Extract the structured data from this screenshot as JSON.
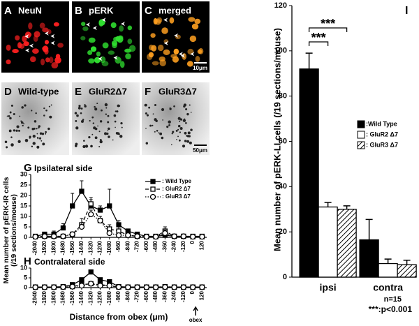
{
  "image_panels": [
    {
      "label": "A",
      "caption": "NeuN"
    },
    {
      "label": "B",
      "caption": "pERK"
    },
    {
      "label": "C",
      "caption": "merged",
      "scale": "10μm"
    },
    {
      "label": "D",
      "caption": "Wild-type"
    },
    {
      "label": "E",
      "caption": "GluR2Δ7"
    },
    {
      "label": "F",
      "caption": "GluR3Δ7",
      "scale": "50μm"
    }
  ],
  "chart_data": [
    {
      "type": "line",
      "panel_label": "G",
      "title": "Ipsilateral side",
      "ylabel": [
        "Mean number of pERK-IR cells",
        "(/19 sections/mouse)"
      ],
      "x": [
        -2040,
        -1920,
        -1800,
        -1680,
        -1560,
        -1440,
        -1320,
        -1200,
        -1080,
        -960,
        -840,
        -720,
        -600,
        -480,
        -360,
        -240,
        -120,
        0,
        120
      ],
      "xlim": [
        -2100,
        180
      ],
      "xticks": [
        -2040,
        -1920,
        -1800,
        -1680,
        -1560,
        -1440,
        -1320,
        -1200,
        -1080,
        -960,
        -840,
        -720,
        -600,
        -480,
        -360,
        -240,
        -120,
        0,
        120
      ],
      "ylim": [
        0,
        30
      ],
      "yticks": [
        0,
        5,
        10,
        15,
        20,
        25,
        30
      ],
      "series": [
        {
          "name": ": Wild Type",
          "color": "#000000",
          "marker": "filled-square",
          "line_style": "solid",
          "values": [
            0.5,
            1.5,
            1.5,
            4.5,
            15,
            22,
            15,
            13,
            15,
            6,
            3,
            1.5,
            0.5,
            0.5,
            1,
            0.5,
            0.5,
            0.5,
            0.5
          ],
          "errors": [
            0.5,
            1,
            1.5,
            2,
            6,
            5,
            3,
            2,
            8,
            2,
            1,
            0.5,
            0.3,
            0.3,
            0.8,
            0.3,
            0.3,
            0.3,
            0.3
          ]
        },
        {
          "name": ": GluR2 Δ7",
          "color": "#000000",
          "marker": "open-square",
          "line_style": "dashed",
          "values": [
            0.3,
            0.5,
            0.5,
            0.5,
            1.5,
            6,
            16,
            8,
            4,
            3,
            1,
            0.5,
            0.3,
            0.3,
            3,
            0.5,
            0.5,
            0.3,
            0.3
          ],
          "errors": [
            0.3,
            0.5,
            0.5,
            0.5,
            1,
            3,
            3,
            2,
            2,
            2,
            1,
            0.5,
            0.3,
            0.3,
            2,
            0.3,
            0.3,
            0.3,
            0.3
          ]
        },
        {
          "name": ": GluR3 Δ7",
          "color": "#000000",
          "marker": "open-circle",
          "line_style": "dotted",
          "values": [
            0.3,
            0.5,
            0.5,
            0.5,
            1.5,
            5,
            11,
            8,
            2,
            1,
            1,
            0.5,
            0.3,
            0.3,
            2,
            0.5,
            0.5,
            0.3,
            0.3
          ],
          "errors": [
            0.3,
            0.3,
            0.3,
            0.5,
            1,
            2,
            2,
            2,
            1,
            1,
            0.5,
            0.3,
            0.3,
            0.3,
            1.5,
            0.3,
            0.3,
            0.3,
            0.3
          ]
        }
      ]
    },
    {
      "type": "line",
      "panel_label": "H",
      "title": "Contralateral side",
      "xlabel": "Distance from obex (μm)",
      "annotation": "obex",
      "x": [
        -2040,
        -1920,
        -1800,
        -1680,
        -1560,
        -1440,
        -1320,
        -1200,
        -1080,
        -960,
        -840,
        -720,
        -600,
        -480,
        -360,
        -240,
        -120,
        0,
        120
      ],
      "xlim": [
        -2100,
        180
      ],
      "xticks": [
        -2040,
        -1920,
        -1800,
        -1680,
        -1560,
        -1440,
        -1320,
        -1200,
        -1080,
        -960,
        -840,
        -720,
        -600,
        -480,
        -360,
        -240,
        -120,
        0,
        120
      ],
      "ylim": [
        0,
        10
      ],
      "yticks": [
        0,
        5,
        10
      ],
      "series": [
        {
          "color": "#000000",
          "marker": "filled-square",
          "line_style": "solid",
          "values": [
            0.3,
            0.3,
            0.3,
            0.5,
            1.5,
            4,
            8,
            4,
            3,
            0.5,
            0.3,
            0.3,
            0.3,
            0.3,
            0.3,
            0.3,
            0.3,
            0.3,
            0.3
          ]
        },
        {
          "color": "#000000",
          "marker": "open-square",
          "line_style": "dashed",
          "values": [
            0.2,
            0.2,
            0.2,
            0.3,
            0.5,
            1.5,
            2,
            1.5,
            1,
            0.3,
            0.2,
            0.2,
            0.2,
            0.2,
            0.5,
            0.2,
            0.2,
            0.2,
            0.2
          ]
        },
        {
          "color": "#000000",
          "marker": "open-circle",
          "line_style": "dotted",
          "values": [
            0.2,
            0.2,
            0.2,
            0.3,
            0.5,
            1,
            2,
            1,
            1,
            0.3,
            0.2,
            0.2,
            0.2,
            0.2,
            0.3,
            0.2,
            0.2,
            0.2,
            0.2
          ]
        }
      ]
    },
    {
      "type": "bar",
      "panel_label": "I",
      "ylabel": "Mean number of pERK-LI cells  (/19 sections/mouse)",
      "categories": [
        "ipsi",
        "contra"
      ],
      "ylim": [
        0,
        120
      ],
      "yticks": [
        0,
        20,
        40,
        60,
        80,
        100,
        120
      ],
      "series": [
        {
          "name": ":Wild Type",
          "color": "#000000",
          "fill": "solid",
          "values": [
            92,
            16.5
          ],
          "errors": [
            7,
            9
          ]
        },
        {
          "name": ": GluR2 Δ7",
          "color": "#ffffff",
          "fill": "solid",
          "values": [
            31,
            6
          ],
          "errors": [
            2,
            2
          ]
        },
        {
          "name": ": GluR3 Δ7",
          "color": "#ffffff",
          "fill": "hatch",
          "values": [
            30,
            5.5
          ],
          "errors": [
            1.5,
            2
          ]
        }
      ],
      "annotations": [
        "***",
        "***",
        "n=15",
        "***:p<0.001"
      ]
    }
  ]
}
